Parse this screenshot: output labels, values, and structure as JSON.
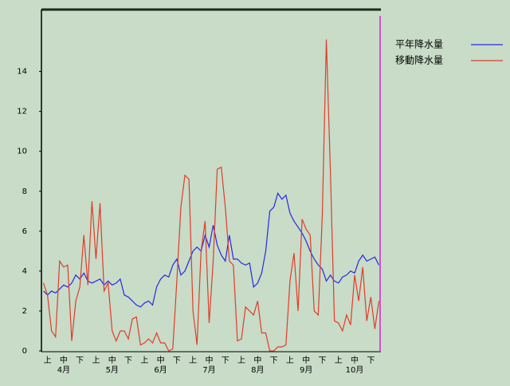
{
  "chart_data": {
    "type": "line",
    "categories": [
      null,
      "上",
      null,
      null,
      null,
      "中",
      null,
      null,
      null,
      "下",
      null,
      null,
      null,
      "上",
      null,
      null,
      null,
      "中",
      null,
      null,
      null,
      "下",
      null,
      null,
      null,
      "上",
      null,
      null,
      null,
      "中",
      null,
      null,
      null,
      "下",
      null,
      null,
      null,
      "上",
      null,
      null,
      null,
      "中",
      null,
      null,
      null,
      "下",
      null,
      null,
      null,
      "上",
      null,
      null,
      null,
      "中",
      null,
      null,
      null,
      "下",
      null,
      null,
      null,
      "上",
      null,
      null,
      null,
      "中",
      null,
      null,
      null,
      "下",
      null,
      null,
      null,
      "上",
      null,
      null,
      null,
      "中",
      null,
      null,
      null,
      "下",
      null,
      null
    ],
    "month_labels": [
      null,
      null,
      null,
      null,
      null,
      "4月",
      null,
      null,
      null,
      null,
      null,
      null,
      null,
      null,
      null,
      null,
      null,
      "5月",
      null,
      null,
      null,
      null,
      null,
      null,
      null,
      null,
      null,
      null,
      null,
      "6月",
      null,
      null,
      null,
      null,
      null,
      null,
      null,
      null,
      null,
      null,
      null,
      "7月",
      null,
      null,
      null,
      null,
      null,
      null,
      null,
      null,
      null,
      null,
      null,
      "8月",
      null,
      null,
      null,
      null,
      null,
      null,
      null,
      null,
      null,
      null,
      null,
      "9月",
      null,
      null,
      null,
      null,
      null,
      null,
      null,
      null,
      null,
      null,
      null,
      "10月",
      null,
      null,
      null,
      null,
      null,
      null
    ],
    "series": [
      {
        "name": "平年降水量",
        "color": "#2828e0",
        "values": [
          3.0,
          2.8,
          3.0,
          2.9,
          3.1,
          3.3,
          3.2,
          3.4,
          3.8,
          3.6,
          3.9,
          3.5,
          3.4,
          3.5,
          3.6,
          3.3,
          3.5,
          3.3,
          3.4,
          3.6,
          2.8,
          2.7,
          2.5,
          2.3,
          2.2,
          2.4,
          2.5,
          2.3,
          3.2,
          3.6,
          3.8,
          3.7,
          4.3,
          4.6,
          3.8,
          4.0,
          4.5,
          5.0,
          5.2,
          5.0,
          5.8,
          5.2,
          6.3,
          5.3,
          4.8,
          4.5,
          5.8,
          4.6,
          4.6,
          4.4,
          4.3,
          4.4,
          3.2,
          3.4,
          3.9,
          5.0,
          7.0,
          7.2,
          7.9,
          7.6,
          7.8,
          6.9,
          6.5,
          6.2,
          5.9,
          5.5,
          5.0,
          4.6,
          4.3,
          4.1,
          3.5,
          3.8,
          3.5,
          3.4,
          3.7,
          3.8,
          4.0,
          3.9,
          4.5,
          4.8,
          4.5,
          4.6,
          4.7,
          4.3
        ]
      },
      {
        "name": "移動降水量",
        "color": "#e03c28",
        "values": [
          3.4,
          2.8,
          1.0,
          0.7,
          4.5,
          4.2,
          4.3,
          0.5,
          2.5,
          3.2,
          5.8,
          3.3,
          7.5,
          4.6,
          7.4,
          3.0,
          3.4,
          1.0,
          0.5,
          1.0,
          1.0,
          0.6,
          1.6,
          1.7,
          0.3,
          0.4,
          0.6,
          0.4,
          0.9,
          0.4,
          0.4,
          0.0,
          0.1,
          3.5,
          7.2,
          8.8,
          8.6,
          2.0,
          0.3,
          5.0,
          6.5,
          1.4,
          4.5,
          9.1,
          9.2,
          7.2,
          4.5,
          4.3,
          0.5,
          0.6,
          2.2,
          2.0,
          1.8,
          2.5,
          0.9,
          0.9,
          0.0,
          0.0,
          0.2,
          0.2,
          0.3,
          3.5,
          4.9,
          2.0,
          6.6,
          6.1,
          5.8,
          2.0,
          1.8,
          6.8,
          15.6,
          9.0,
          1.5,
          1.4,
          1.0,
          1.8,
          1.3,
          3.8,
          2.5,
          4.2,
          1.5,
          2.7,
          1.1,
          2.5
        ]
      }
    ],
    "ylim": [
      0,
      17.1
    ],
    "yticks": [
      0,
      2,
      4,
      6,
      8,
      10,
      12,
      14
    ],
    "grid": false
  }
}
